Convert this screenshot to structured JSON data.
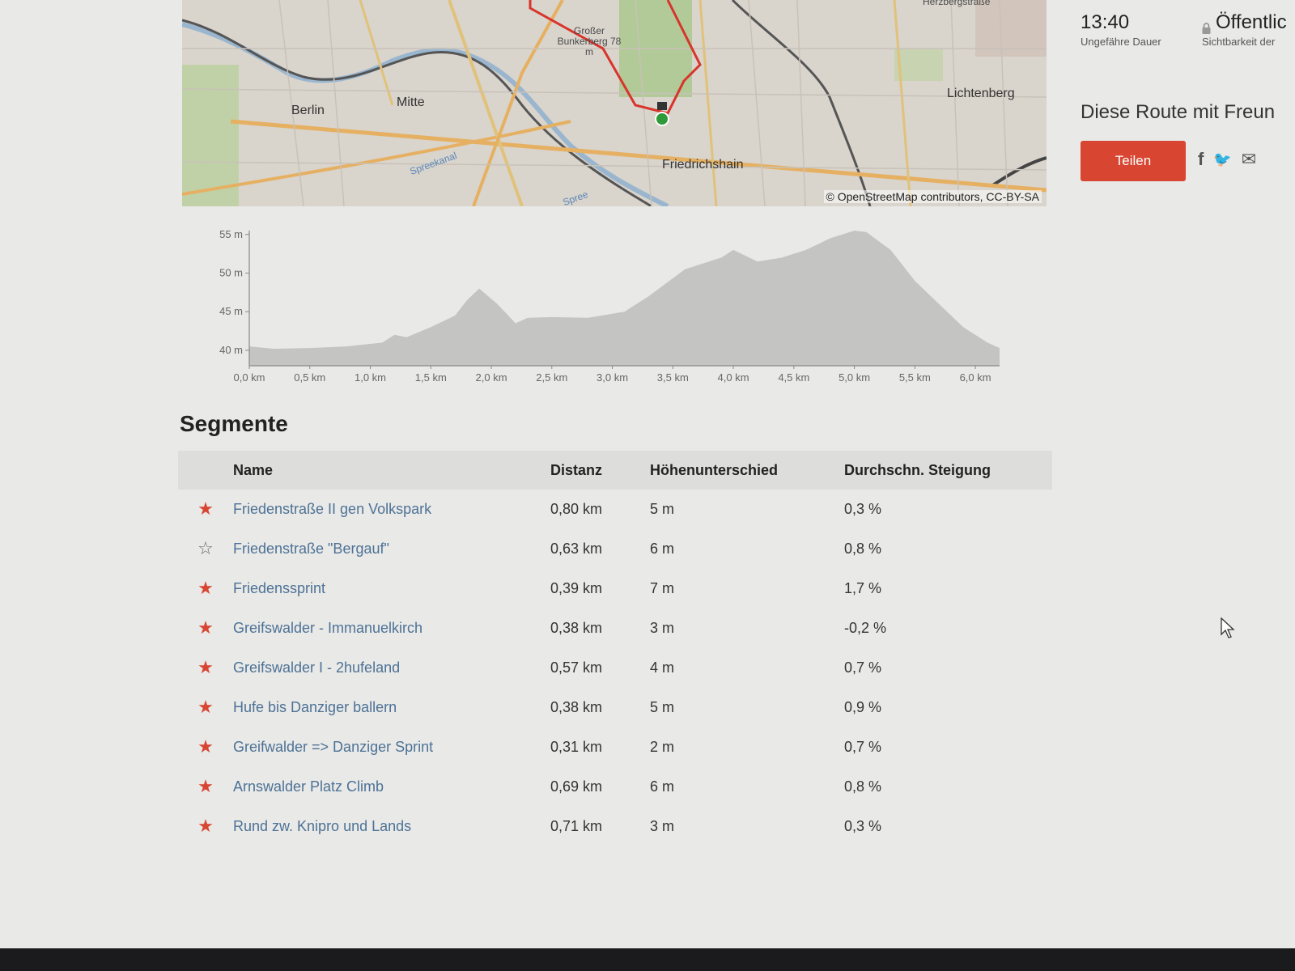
{
  "map": {
    "labels": {
      "berlin": "Berlin",
      "mitte": "Mitte",
      "friedrichshain": "Friedrichshain",
      "lichtenberg": "Lichtenberg",
      "bunkerberg": "Großer Bunkerberg 78 m",
      "herzbergstrasse": "Herzbergstraße",
      "spreekanal": "Spreekanal",
      "spree": "Spree"
    },
    "attribution": "© OpenStreetMap contributors, CC-BY-SA",
    "colors": {
      "route": "#d8342b",
      "finish_marker": "#2e9a3a"
    }
  },
  "stats": {
    "duration_value": "13:40",
    "duration_label": "Ungefähre Dauer",
    "visibility_value": "Öffentlic",
    "visibility_label": "Sichtbarkeit der",
    "visibility_icon": "lock-icon"
  },
  "share": {
    "title": "Diese Route mit Freun",
    "button_label": "Teilen",
    "icons": [
      "facebook-icon",
      "twitter-icon",
      "email-icon"
    ],
    "icon_glyphs": {
      "facebook": "f",
      "twitter": "🐦",
      "email": "✉"
    }
  },
  "chart_data": {
    "type": "area",
    "title": "",
    "xlabel": "",
    "ylabel": "",
    "y_ticks": [
      "40 m",
      "45 m",
      "50 m",
      "55 m"
    ],
    "x_ticks": [
      "0,0 km",
      "0,5 km",
      "1,0 km",
      "1,5 km",
      "2,0 km",
      "2,5 km",
      "3,0 km",
      "3,5 km",
      "4,0 km",
      "4,5 km",
      "5,0 km",
      "5,5 km",
      "6,0 km"
    ],
    "ylim": [
      38,
      55.5
    ],
    "xlim": [
      0,
      6.2
    ],
    "x": [
      0,
      0.2,
      0.5,
      0.8,
      1.1,
      1.2,
      1.3,
      1.5,
      1.7,
      1.8,
      1.9,
      2.05,
      2.2,
      2.3,
      2.5,
      2.8,
      3.1,
      3.3,
      3.6,
      3.9,
      4.0,
      4.2,
      4.4,
      4.6,
      4.8,
      5.0,
      5.1,
      5.3,
      5.5,
      5.7,
      5.9,
      6.1,
      6.2
    ],
    "y": [
      40.5,
      40.2,
      40.3,
      40.5,
      41,
      42,
      41.7,
      43,
      44.5,
      46.5,
      48,
      46,
      43.5,
      44.2,
      44.3,
      44.2,
      45,
      47,
      50.5,
      52,
      53,
      51.5,
      52,
      53,
      54.5,
      55.5,
      55.3,
      53,
      49,
      46,
      43,
      41,
      40.3
    ],
    "colors": {
      "fill": "#c4c4c2",
      "axis": "#888888"
    }
  },
  "segments": {
    "title": "Segmente",
    "columns": [
      "Name",
      "Distanz",
      "Höhenunterschied",
      "Durchschn. Steigung"
    ],
    "rows": [
      {
        "starred": true,
        "name": "Friedenstraße II gen Volkspark",
        "distance": "0,80 km",
        "elevation": "5 m",
        "grade": "0,3 %"
      },
      {
        "starred": false,
        "name": "Friedenstraße \"Bergauf\"",
        "distance": "0,63 km",
        "elevation": "6 m",
        "grade": "0,8 %"
      },
      {
        "starred": true,
        "name": "Friedenssprint",
        "distance": "0,39 km",
        "elevation": "7 m",
        "grade": "1,7 %"
      },
      {
        "starred": true,
        "name": "Greifswalder - Immanuelkirch",
        "distance": "0,38 km",
        "elevation": "3 m",
        "grade": "-0,2 %"
      },
      {
        "starred": true,
        "name": "Greifswalder I - 2hufeland",
        "distance": "0,57 km",
        "elevation": "4 m",
        "grade": "0,7 %"
      },
      {
        "starred": true,
        "name": "Hufe bis Danziger ballern",
        "distance": "0,38 km",
        "elevation": "5 m",
        "grade": "0,9 %"
      },
      {
        "starred": true,
        "name": "Greifwalder => Danziger Sprint",
        "distance": "0,31 km",
        "elevation": "2 m",
        "grade": "0,7 %"
      },
      {
        "starred": true,
        "name": "Arnswalder Platz Climb",
        "distance": "0,69 km",
        "elevation": "6 m",
        "grade": "0,8 %"
      },
      {
        "starred": true,
        "name": "Rund zw. Knipro und Lands",
        "distance": "0,71 km",
        "elevation": "3 m",
        "grade": "0,3 %"
      }
    ],
    "colors": {
      "star_filled": "#d84632",
      "star_outline": "#666666",
      "link": "#4d7296"
    }
  }
}
